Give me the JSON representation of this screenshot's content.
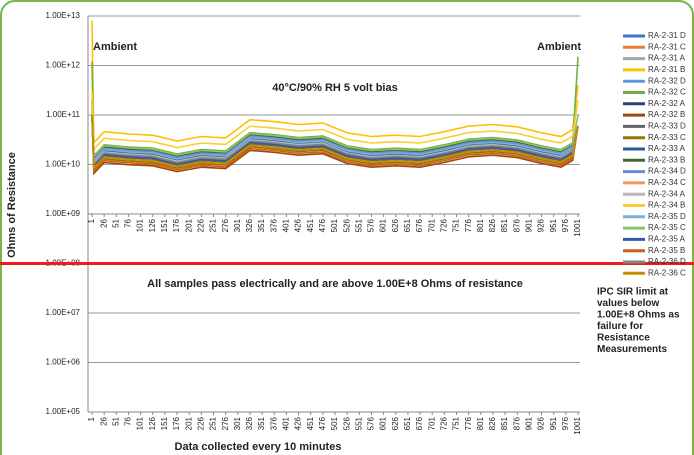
{
  "chart_data": {
    "type": "line",
    "log_y": true,
    "y_label": "Ohms of Resistance",
    "x_label": "Data collected every 10 minutes",
    "annotations": [
      "Ambient",
      "Ambient",
      "40°C/90% RH 5 volt bias",
      "All samples pass electrically and are above 1.00E+8 Ohms of resistance"
    ],
    "note_lines": [
      "IPC SIR limit at",
      "values below",
      "1.00E+8 Ohms as",
      "failure for",
      "Resistance",
      "Measurements"
    ],
    "threshold": {
      "value": 100000000.0,
      "color": "#e8201c"
    },
    "xaxis_at": [
      1000000000.0,
      100000.0
    ],
    "xlim": [
      1,
      1001
    ],
    "ylim": [
      100000.0,
      10000000000000.0
    ],
    "xticks": [
      1,
      26,
      51,
      76,
      101,
      126,
      151,
      176,
      201,
      226,
      251,
      276,
      301,
      326,
      351,
      376,
      401,
      426,
      451,
      476,
      501,
      526,
      551,
      576,
      601,
      626,
      651,
      676,
      701,
      726,
      751,
      776,
      801,
      826,
      851,
      876,
      901,
      926,
      951,
      976,
      1001
    ],
    "yticks": [
      {
        "value": 100000.0,
        "label": "1.00E+05"
      },
      {
        "value": 1000000.0,
        "label": "1.00E+06"
      },
      {
        "value": 10000000.0,
        "label": "1.00E+07"
      },
      {
        "value": 100000000.0,
        "label": "1.00E+08"
      },
      {
        "value": 1000000000.0,
        "label": "1.00E+09"
      },
      {
        "value": 10000000000.0,
        "label": "1.00E+10"
      },
      {
        "value": 100000000000.0,
        "label": "1.00E+11"
      },
      {
        "value": 1000000000000.0,
        "label": "1.00E+12"
      },
      {
        "value": 10000000000000.0,
        "label": "1.00E+13"
      }
    ],
    "grid": true,
    "x": [
      1,
      5,
      26,
      76,
      126,
      176,
      226,
      276,
      326,
      376,
      426,
      476,
      526,
      576,
      626,
      676,
      726,
      776,
      826,
      876,
      926,
      966,
      990,
      1001
    ],
    "series": [
      {
        "name": "RA-2-31 D",
        "color": "#4572c4",
        "values": [
          100000000000.0,
          12000000000.0,
          20000000000.0,
          18000000000.0,
          17000000000.0,
          13000000000.0,
          16000000000.0,
          15000000000.0,
          35000000000.0,
          32000000000.0,
          28000000000.0,
          30000000000.0,
          19000000000.0,
          16000000000.0,
          17000000000.0,
          16000000000.0,
          20000000000.0,
          26000000000.0,
          28000000000.0,
          25000000000.0,
          19000000000.0,
          16000000000.0,
          22000000000.0,
          60000000000.0
        ]
      },
      {
        "name": "RA-2-31 C",
        "color": "#ed7d31",
        "values": [
          100000000000.0,
          9600000000.0,
          16000000000.0,
          14400000000.0,
          13600000000.0,
          10400000000.0,
          12800000000.0,
          12000000000.0,
          28000000000.0,
          25600000000.0,
          22400000000.0,
          24000000000.0,
          15200000000.0,
          12800000000.0,
          13600000000.0,
          12800000000.0,
          16000000000.0,
          20800000000.0,
          22400000000.0,
          20000000000.0,
          15200000000.0,
          12800000000.0,
          17600000000.0,
          60000000000.0
        ]
      },
      {
        "name": "RA-2-31 A",
        "color": "#a5a5a5",
        "values": [
          100000000000.0,
          10800000000.0,
          18000000000.0,
          16200000000.0,
          15300000000.0,
          11700000000.0,
          14400000000.0,
          13500000000.0,
          31500000000.0,
          28800000000.0,
          25200000000.0,
          27000000000.0,
          17100000000.0,
          14400000000.0,
          15300000000.0,
          14400000000.0,
          18000000000.0,
          23400000000.0,
          25200000000.0,
          22500000000.0,
          17100000000.0,
          14400000000.0,
          19800000000.0,
          60000000000.0
        ]
      },
      {
        "name": "RA-2-31 B",
        "color": "#ffc000",
        "values": [
          8000000000000.0,
          27600000000.0,
          46000000000.0,
          41400000000.0,
          39100000000.0,
          29900000000.0,
          36800000000.0,
          34500000000.0,
          80500000000.0,
          73600000000.0,
          64400000000.0,
          69000000000.0,
          43700000000.0,
          36800000000.0,
          39100000000.0,
          36800000000.0,
          46000000000.0,
          59800000000.0,
          64400000000.0,
          57500000000.0,
          43700000000.0,
          36800000000.0,
          50600000000.0,
          400000000000.0
        ]
      },
      {
        "name": "RA-2-32 D",
        "color": "#5b9bd5",
        "values": [
          100000000000.0,
          13200000000.0,
          22000000000.0,
          19800000000.0,
          18700000000.0,
          14300000000.0,
          17600000000.0,
          16500000000.0,
          38500000000.0,
          35200000000.0,
          30800000000.0,
          33000000000.0,
          20900000000.0,
          17600000000.0,
          18700000000.0,
          17600000000.0,
          22000000000.0,
          28600000000.0,
          30800000000.0,
          27500000000.0,
          20900000000.0,
          17600000000.0,
          24200000000.0,
          60000000000.0
        ]
      },
      {
        "name": "RA-2-32 C",
        "color": "#70ad47",
        "values": [
          1200000000000.0,
          15000000000.0,
          25000000000.0,
          22500000000.0,
          21300000000.0,
          16300000000.0,
          20000000000.0,
          18800000000.0,
          43800000000.0,
          40000000000.0,
          35000000000.0,
          37500000000.0,
          23800000000.0,
          20000000000.0,
          21300000000.0,
          20000000000.0,
          25000000000.0,
          32500000000.0,
          35000000000.0,
          31300000000.0,
          23800000000.0,
          20000000000.0,
          27500000000.0,
          1500000000000.0
        ]
      },
      {
        "name": "RA-2-32 A",
        "color": "#264478",
        "values": [
          100000000000.0,
          10200000000.0,
          17000000000.0,
          15300000000.0,
          14500000000.0,
          11000000000.0,
          13600000000.0,
          12800000000.0,
          29800000000.0,
          27200000000.0,
          23800000000.0,
          25500000000.0,
          16200000000.0,
          13600000000.0,
          14500000000.0,
          13600000000.0,
          17000000000.0,
          22100000000.0,
          23800000000.0,
          21300000000.0,
          16200000000.0,
          13600000000.0,
          18700000000.0,
          60000000000.0
        ]
      },
      {
        "name": "RA-2-32 B",
        "color": "#9e480e",
        "values": [
          100000000000.0,
          6600000000.0,
          11000000000.0,
          9900000000.0,
          9400000000.0,
          7200000000.0,
          8800000000.0,
          8300000000.0,
          19300000000.0,
          17600000000.0,
          15400000000.0,
          16500000000.0,
          10500000000.0,
          8800000000.0,
          9400000000.0,
          8800000000.0,
          11000000000.0,
          14300000000.0,
          15400000000.0,
          13800000000.0,
          10500000000.0,
          8800000000.0,
          12100000000.0,
          60000000000.0
        ]
      },
      {
        "name": "RA-2-33 D",
        "color": "#636363",
        "values": [
          100000000000.0,
          9000000000.0,
          15000000000.0,
          13500000000.0,
          12800000000.0,
          9800000000.0,
          12000000000.0,
          11300000000.0,
          26300000000.0,
          24000000000.0,
          21000000000.0,
          22500000000.0,
          14300000000.0,
          12000000000.0,
          12800000000.0,
          12000000000.0,
          15000000000.0,
          19500000000.0,
          21000000000.0,
          18800000000.0,
          14300000000.0,
          12000000000.0,
          16500000000.0,
          60000000000.0
        ]
      },
      {
        "name": "RA-2-33 C",
        "color": "#997300",
        "values": [
          100000000000.0,
          7800000000.0,
          13000000000.0,
          11700000000.0,
          11100000000.0,
          8500000000.0,
          10400000000.0,
          9800000000.0,
          22800000000.0,
          20800000000.0,
          18200000000.0,
          19500000000.0,
          12400000000.0,
          10400000000.0,
          11100000000.0,
          10400000000.0,
          13000000000.0,
          16900000000.0,
          18200000000.0,
          16300000000.0,
          12400000000.0,
          10400000000.0,
          14300000000.0,
          60000000000.0
        ]
      },
      {
        "name": "RA-2-33 A",
        "color": "#255e91",
        "values": [
          100000000000.0,
          11400000000.0,
          19000000000.0,
          17100000000.0,
          16200000000.0,
          12400000000.0,
          15200000000.0,
          14300000000.0,
          33300000000.0,
          30400000000.0,
          26600000000.0,
          28500000000.0,
          18100000000.0,
          15200000000.0,
          16200000000.0,
          15200000000.0,
          19000000000.0,
          24700000000.0,
          26600000000.0,
          23800000000.0,
          18100000000.0,
          15200000000.0,
          20900000000.0,
          60000000000.0
        ]
      },
      {
        "name": "RA-2-33 B",
        "color": "#43682b",
        "values": [
          200000000000.0,
          13800000000.0,
          23000000000.0,
          20700000000.0,
          19600000000.0,
          15000000000.0,
          18400000000.0,
          17300000000.0,
          40300000000.0,
          36800000000.0,
          32200000000.0,
          34500000000.0,
          21900000000.0,
          18400000000.0,
          19600000000.0,
          18400000000.0,
          23000000000.0,
          29900000000.0,
          32200000000.0,
          28800000000.0,
          21900000000.0,
          18400000000.0,
          25300000000.0,
          60000000000.0
        ]
      },
      {
        "name": "RA-2-34 D",
        "color": "#698ed0",
        "values": [
          100000000000.0,
          12600000000.0,
          21000000000.0,
          18900000000.0,
          17900000000.0,
          13700000000.0,
          16800000000.0,
          15800000000.0,
          36800000000.0,
          33600000000.0,
          29400000000.0,
          31500000000.0,
          20000000000.0,
          16800000000.0,
          17900000000.0,
          16800000000.0,
          21000000000.0,
          27300000000.0,
          29400000000.0,
          26300000000.0,
          20000000000.0,
          16800000000.0,
          23100000000.0,
          60000000000.0
        ]
      },
      {
        "name": "RA-2-34 C",
        "color": "#f1975a",
        "values": [
          100000000000.0,
          8400000000.0,
          14000000000.0,
          12600000000.0,
          11900000000.0,
          9100000000.0,
          11200000000.0,
          10500000000.0,
          24500000000.0,
          22400000000.0,
          19600000000.0,
          21000000000.0,
          13300000000.0,
          11200000000.0,
          11900000000.0,
          11200000000.0,
          14000000000.0,
          18200000000.0,
          19600000000.0,
          17500000000.0,
          13300000000.0,
          11200000000.0,
          15400000000.0,
          60000000000.0
        ]
      },
      {
        "name": "RA-2-34 A",
        "color": "#b7b7b7",
        "values": [
          100000000000.0,
          10800000000.0,
          18000000000.0,
          16200000000.0,
          15300000000.0,
          11700000000.0,
          14400000000.0,
          13500000000.0,
          31500000000.0,
          28800000000.0,
          25200000000.0,
          27000000000.0,
          17100000000.0,
          14400000000.0,
          15300000000.0,
          14400000000.0,
          18000000000.0,
          23400000000.0,
          25200000000.0,
          22500000000.0,
          17100000000.0,
          14400000000.0,
          19800000000.0,
          60000000000.0
        ]
      },
      {
        "name": "RA-2-34 B",
        "color": "#ffcd33",
        "values": [
          300000000000.0,
          20400000000.0,
          34000000000.0,
          30600000000.0,
          28900000000.0,
          22100000000.0,
          27200000000.0,
          25500000000.0,
          59500000000.0,
          54400000000.0,
          47600000000.0,
          51000000000.0,
          32300000000.0,
          27200000000.0,
          28900000000.0,
          27200000000.0,
          34000000000.0,
          44200000000.0,
          47600000000.0,
          42500000000.0,
          32300000000.0,
          27200000000.0,
          37400000000.0,
          200000000000.0
        ]
      },
      {
        "name": "RA-2-35 D",
        "color": "#7cafdd",
        "values": [
          100000000000.0,
          12000000000.0,
          20000000000.0,
          18000000000.0,
          17000000000.0,
          13000000000.0,
          16000000000.0,
          15000000000.0,
          35000000000.0,
          32000000000.0,
          28000000000.0,
          30000000000.0,
          19000000000.0,
          16000000000.0,
          17000000000.0,
          16000000000.0,
          20000000000.0,
          26000000000.0,
          28000000000.0,
          25000000000.0,
          19000000000.0,
          16000000000.0,
          22000000000.0,
          60000000000.0
        ]
      },
      {
        "name": "RA-2-35 C",
        "color": "#8cc168",
        "values": [
          100000000000.0,
          14400000000.0,
          24000000000.0,
          21600000000.0,
          20400000000.0,
          15600000000.0,
          19200000000.0,
          18000000000.0,
          42000000000.0,
          38400000000.0,
          33600000000.0,
          36000000000.0,
          22800000000.0,
          19200000000.0,
          20400000000.0,
          19200000000.0,
          24000000000.0,
          31200000000.0,
          33600000000.0,
          30000000000.0,
          22800000000.0,
          19200000000.0,
          26400000000.0,
          100000000000.0
        ]
      },
      {
        "name": "RA-2-35 A",
        "color": "#335aa1",
        "values": [
          100000000000.0,
          9600000000.0,
          16000000000.0,
          14400000000.0,
          13600000000.0,
          10400000000.0,
          12800000000.0,
          12000000000.0,
          28000000000.0,
          25600000000.0,
          22400000000.0,
          24000000000.0,
          15200000000.0,
          12800000000.0,
          13600000000.0,
          12800000000.0,
          16000000000.0,
          20800000000.0,
          22400000000.0,
          20000000000.0,
          15200000000.0,
          12800000000.0,
          17600000000.0,
          60000000000.0
        ]
      },
      {
        "name": "RA-2-35 B",
        "color": "#d26012",
        "values": [
          100000000000.0,
          7200000000.0,
          12000000000.0,
          10800000000.0,
          10200000000.0,
          7800000000.0,
          9600000000.0,
          9000000000.0,
          21000000000.0,
          19200000000.0,
          16800000000.0,
          18000000000.0,
          11400000000.0,
          9600000000.0,
          10200000000.0,
          9600000000.0,
          12000000000.0,
          15600000000.0,
          16800000000.0,
          15000000000.0,
          11400000000.0,
          9600000000.0,
          13200000000.0,
          60000000000.0
        ]
      },
      {
        "name": "RA-2-36 D",
        "color": "#848484",
        "values": [
          100000000000.0,
          10200000000.0,
          17000000000.0,
          15300000000.0,
          14500000000.0,
          11000000000.0,
          13600000000.0,
          12800000000.0,
          29800000000.0,
          27200000000.0,
          23800000000.0,
          25500000000.0,
          16200000000.0,
          13600000000.0,
          14500000000.0,
          13600000000.0,
          17000000000.0,
          22100000000.0,
          23800000000.0,
          21300000000.0,
          16200000000.0,
          13600000000.0,
          18700000000.0,
          60000000000.0
        ]
      },
      {
        "name": "RA-2-36 C",
        "color": "#c39100",
        "values": [
          100000000000.0,
          8400000000.0,
          14000000000.0,
          12600000000.0,
          11900000000.0,
          9100000000.0,
          11200000000.0,
          10500000000.0,
          24500000000.0,
          22400000000.0,
          19600000000.0,
          21000000000.0,
          13300000000.0,
          11200000000.0,
          11900000000.0,
          11200000000.0,
          14000000000.0,
          18200000000.0,
          19600000000.0,
          17500000000.0,
          13300000000.0,
          11200000000.0,
          15400000000.0,
          60000000000.0
        ]
      }
    ]
  }
}
